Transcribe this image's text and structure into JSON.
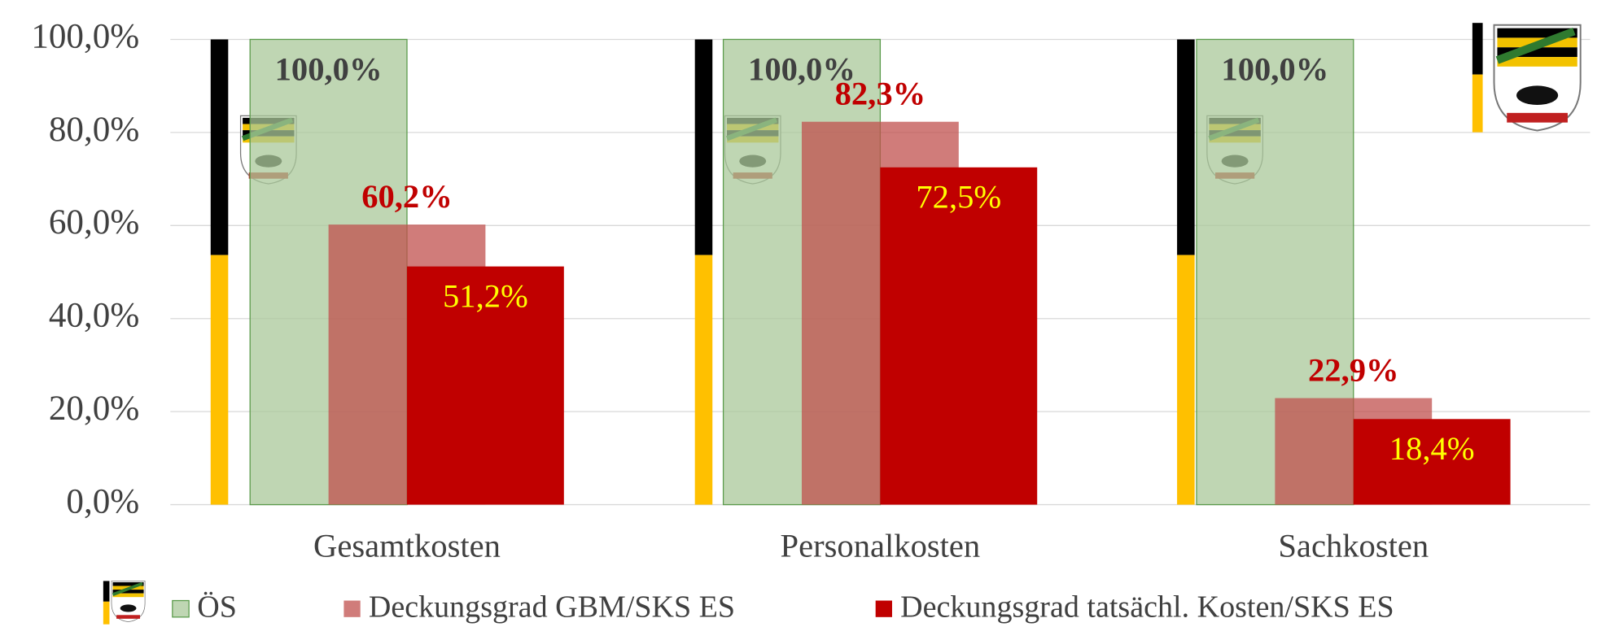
{
  "chart_data": {
    "type": "bar",
    "categories": [
      "Gesamtkosten",
      "Personalkosten",
      "Sachkosten"
    ],
    "series": [
      {
        "name": "ÖS",
        "color": "#a9c89a",
        "values": [
          100,
          100,
          100
        ],
        "value_labels": [
          "100,0%",
          "100,0%",
          "100,0%"
        ]
      },
      {
        "name": "Deckungsgrad GBM/SKS ES",
        "color": "#c0504d",
        "values": [
          60.2,
          82.3,
          22.9
        ],
        "value_labels": [
          "60,2%",
          "82,3%",
          "22,9%"
        ]
      },
      {
        "name": "Deckungsgrad tatsächl. Kosten/SKS ES",
        "color": "#c00000",
        "values": [
          51.2,
          72.5,
          18.4
        ],
        "value_labels": [
          "51,2%",
          "72,5%",
          "18,4%"
        ]
      }
    ],
    "ylim": [
      0,
      100
    ],
    "yticks": [
      {
        "value": 0,
        "label": "0,0%"
      },
      {
        "value": 20,
        "label": "20,0%"
      },
      {
        "value": 40,
        "label": "40,0%"
      },
      {
        "value": 60,
        "label": "60,0%"
      },
      {
        "value": 80,
        "label": "80,0%"
      },
      {
        "value": 100,
        "label": "100,0%"
      }
    ],
    "grid": true
  }
}
